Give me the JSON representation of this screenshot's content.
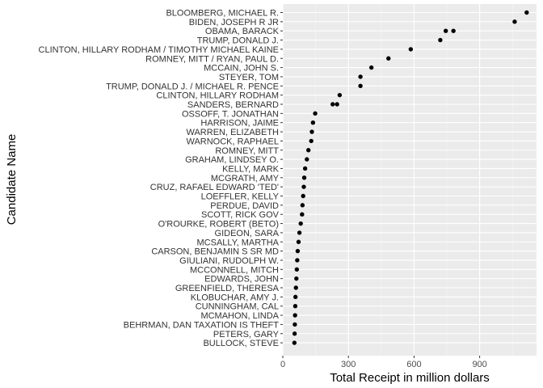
{
  "chart_data": {
    "type": "scatter",
    "title": "",
    "xlabel": "Total Receipt in million dollars",
    "ylabel": "Candidate Name",
    "xlim": [
      0,
      1160
    ],
    "x_ticks": [
      0,
      300,
      600,
      900
    ],
    "grid": true,
    "categories": [
      "BLOOMBERG, MICHAEL R.",
      "BIDEN, JOSEPH R JR",
      "OBAMA, BARACK",
      "TRUMP, DONALD J.",
      "CLINTON, HILLARY RODHAM / TIMOTHY MICHAEL KAINE",
      "ROMNEY, MITT / RYAN, PAUL D.",
      "MCCAIN, JOHN S.",
      "STEYER, TOM",
      "TRUMP, DONALD J. / MICHAEL R. PENCE",
      "CLINTON, HILLARY RODHAM",
      "SANDERS, BERNARD",
      "OSSOFF, T. JONATHAN",
      "HARRISON, JAIME",
      "WARREN, ELIZABETH",
      "WARNOCK, RAPHAEL",
      "ROMNEY, MITT",
      "GRAHAM, LINDSEY O.",
      "KELLY, MARK",
      "MCGRATH, AMY",
      "CRUZ, RAFAEL EDWARD 'TED'",
      "LOEFFLER, KELLY",
      "PERDUE, DAVID",
      "SCOTT, RICK GOV",
      "O'ROURKE, ROBERT (BETO)",
      "GIDEON, SARA",
      "MCSALLY, MARTHA",
      "CARSON, BENJAMIN S SR MD",
      "GIULIANI, RUDOLPH W.",
      "MCCONNELL, MITCH",
      "EDWARDS, JOHN",
      "GREENFIELD, THERESA",
      "KLOBUCHAR, AMY J.",
      "CUNNINGHAM, CAL",
      "MCMAHON, LINDA",
      "BEHRMAN, DAN TAXATION IS THEFT",
      "PETERS, GARY",
      "BULLOCK, STEVE"
    ],
    "points": [
      {
        "name": "BLOOMBERG, MICHAEL R.",
        "values": [
          1115
        ]
      },
      {
        "name": "BIDEN, JOSEPH R JR",
        "values": [
          1060
        ]
      },
      {
        "name": "OBAMA, BARACK",
        "values": [
          745,
          780
        ]
      },
      {
        "name": "TRUMP, DONALD J.",
        "values": [
          720
        ]
      },
      {
        "name": "CLINTON, HILLARY RODHAM / TIMOTHY MICHAEL KAINE",
        "values": [
          585
        ]
      },
      {
        "name": "ROMNEY, MITT / RYAN, PAUL D.",
        "values": [
          483
        ]
      },
      {
        "name": "MCCAIN, JOHN S.",
        "values": [
          405
        ]
      },
      {
        "name": "STEYER, TOM",
        "values": [
          355
        ]
      },
      {
        "name": "TRUMP, DONALD J. / MICHAEL R. PENCE",
        "values": [
          355
        ]
      },
      {
        "name": "CLINTON, HILLARY RODHAM",
        "values": [
          260
        ]
      },
      {
        "name": "SANDERS, BERNARD",
        "values": [
          228,
          248
        ]
      },
      {
        "name": "OSSOFF, T. JONATHAN",
        "values": [
          148
        ]
      },
      {
        "name": "HARRISON, JAIME",
        "values": [
          138
        ]
      },
      {
        "name": "WARREN, ELIZABETH",
        "values": [
          133
        ]
      },
      {
        "name": "WARNOCK, RAPHAEL",
        "values": [
          130
        ]
      },
      {
        "name": "ROMNEY, MITT",
        "values": [
          117
        ]
      },
      {
        "name": "GRAHAM, LINDSEY O.",
        "values": [
          110
        ]
      },
      {
        "name": "KELLY, MARK",
        "values": [
          102
        ]
      },
      {
        "name": "MCGRATH, AMY",
        "values": [
          98
        ]
      },
      {
        "name": "CRUZ, RAFAEL EDWARD 'TED'",
        "values": [
          96
        ]
      },
      {
        "name": "LOEFFLER, KELLY",
        "values": [
          93
        ]
      },
      {
        "name": "PERDUE, DAVID",
        "values": [
          90
        ]
      },
      {
        "name": "SCOTT, RICK GOV",
        "values": [
          88
        ]
      },
      {
        "name": "O'ROURKE, ROBERT (BETO)",
        "values": [
          82
        ]
      },
      {
        "name": "GIDEON, SARA",
        "values": [
          76
        ]
      },
      {
        "name": "MCSALLY, MARTHA",
        "values": [
          72
        ]
      },
      {
        "name": "CARSON, BENJAMIN S SR MD",
        "values": [
          68
        ]
      },
      {
        "name": "GIULIANI, RUDOLPH W.",
        "values": [
          66
        ]
      },
      {
        "name": "MCCONNELL, MITCH",
        "values": [
          64
        ]
      },
      {
        "name": "EDWARDS, JOHN",
        "values": [
          62
        ]
      },
      {
        "name": "GREENFIELD, THERESA",
        "values": [
          60
        ]
      },
      {
        "name": "KLOBUCHAR, AMY J.",
        "values": [
          58
        ]
      },
      {
        "name": "CUNNINGHAM, CAL",
        "values": [
          57
        ]
      },
      {
        "name": "MCMAHON, LINDA",
        "values": [
          56
        ]
      },
      {
        "name": "BEHRMAN, DAN TAXATION IS THEFT",
        "values": [
          55
        ]
      },
      {
        "name": "PETERS, GARY",
        "values": [
          54
        ]
      },
      {
        "name": "BULLOCK, STEVE",
        "values": [
          53
        ]
      }
    ],
    "colors": {
      "panel": "#ebebeb",
      "grid_major": "#ffffff",
      "grid_minor": "#f5f5f5",
      "point": "#000000",
      "tick": "#333333"
    }
  }
}
